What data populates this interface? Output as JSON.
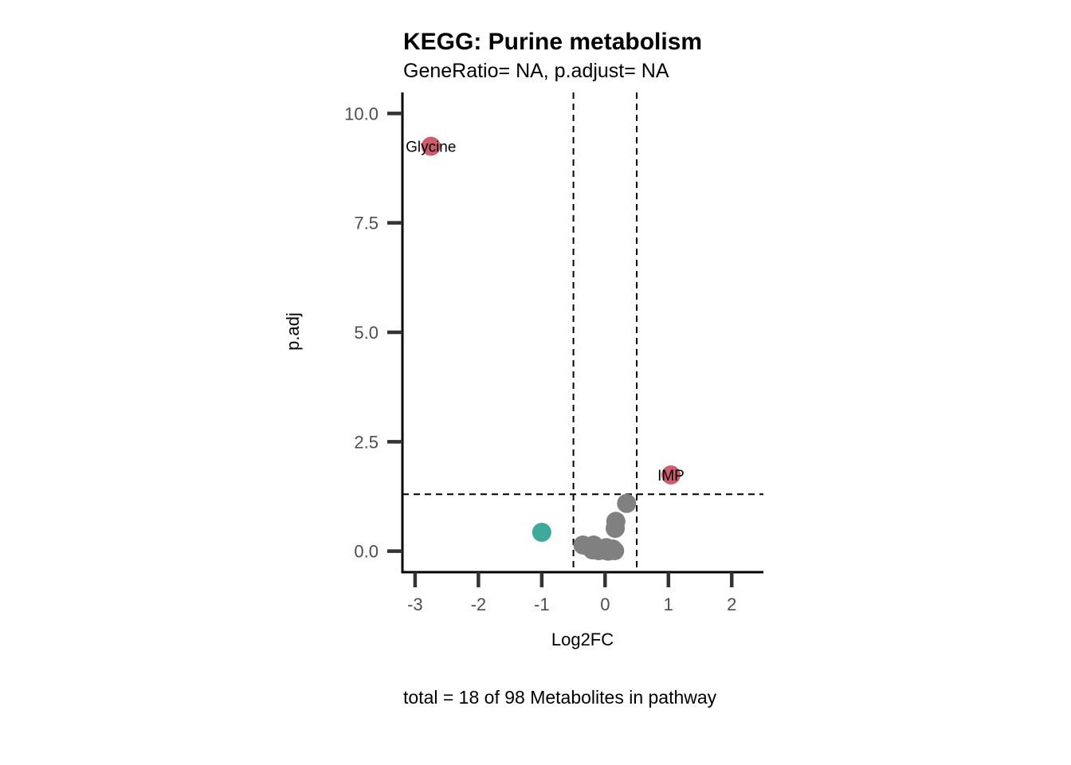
{
  "chart_data": {
    "type": "scatter",
    "title": "KEGG: Purine metabolism",
    "subtitle": "GeneRatio= NA, p.adjust= NA",
    "xlabel": "Log2FC",
    "ylabel": "p.adj",
    "caption": "total = 18 of 98 Metabolites in pathway",
    "xlim": [
      -3.2,
      2.5
    ],
    "ylim": [
      -0.48,
      10.48
    ],
    "x_ticks": [
      -3,
      -2,
      -1,
      0,
      1,
      2
    ],
    "x_tick_labels": [
      "-3",
      "-2",
      "-1",
      "0",
      "1",
      "2"
    ],
    "y_ticks": [
      0,
      2.5,
      5,
      7.5,
      10
    ],
    "y_tick_labels": [
      "0.0",
      "2.5",
      "5.0",
      "7.5",
      "10.0"
    ],
    "thresholds": {
      "vlines": [
        -0.5,
        0.5
      ],
      "hline": 1.3
    },
    "colors": {
      "up": "#CD5C6E",
      "down": "#3FA99C",
      "ns": "#808080"
    },
    "points": [
      {
        "x": -2.75,
        "y": 9.25,
        "group": "up",
        "label": "Glycine"
      },
      {
        "x": 1.04,
        "y": 1.74,
        "group": "up",
        "label": "IMP"
      },
      {
        "x": -1.0,
        "y": 0.43,
        "group": "down",
        "label": ""
      },
      {
        "x": 0.34,
        "y": 1.09,
        "group": "ns",
        "label": ""
      },
      {
        "x": 0.17,
        "y": 0.68,
        "group": "ns",
        "label": ""
      },
      {
        "x": 0.16,
        "y": 0.52,
        "group": "ns",
        "label": ""
      },
      {
        "x": -0.35,
        "y": 0.14,
        "group": "ns",
        "label": ""
      },
      {
        "x": -0.25,
        "y": 0.1,
        "group": "ns",
        "label": ""
      },
      {
        "x": -0.18,
        "y": 0.14,
        "group": "ns",
        "label": ""
      },
      {
        "x": -0.2,
        "y": 0.03,
        "group": "ns",
        "label": ""
      },
      {
        "x": -0.1,
        "y": 0.01,
        "group": "ns",
        "label": ""
      },
      {
        "x": -0.02,
        "y": 0.02,
        "group": "ns",
        "label": ""
      },
      {
        "x": 0.05,
        "y": 0.0,
        "group": "ns",
        "label": ""
      },
      {
        "x": 0.1,
        "y": 0.02,
        "group": "ns",
        "label": ""
      },
      {
        "x": 0.15,
        "y": 0.01,
        "group": "ns",
        "label": ""
      },
      {
        "x": -0.05,
        "y": 0.05,
        "group": "ns",
        "label": ""
      },
      {
        "x": 0.02,
        "y": 0.08,
        "group": "ns",
        "label": ""
      },
      {
        "x": 0.12,
        "y": 0.05,
        "group": "ns",
        "label": ""
      }
    ]
  }
}
